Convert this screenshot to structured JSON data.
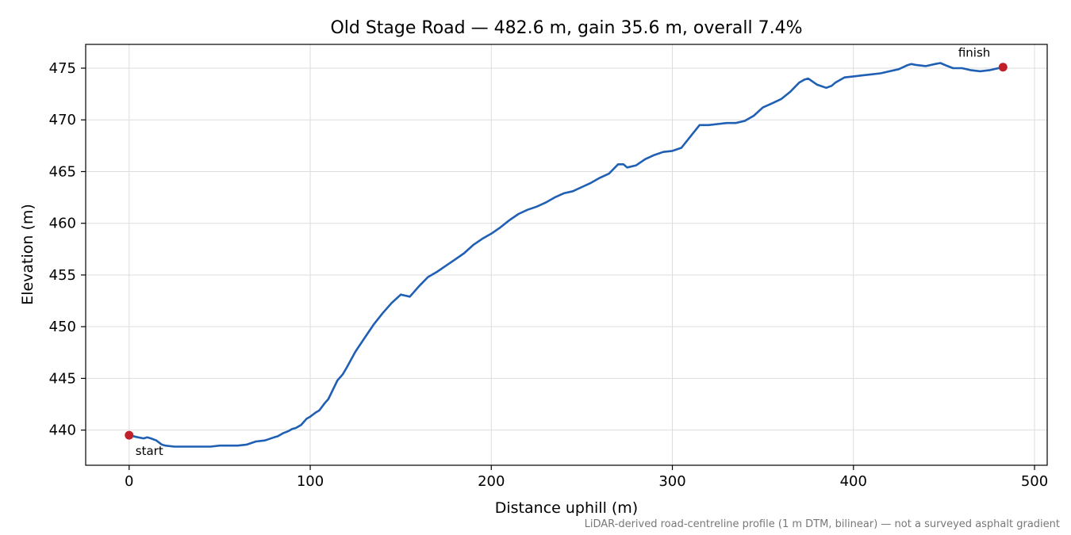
{
  "chart_data": {
    "type": "line",
    "title": "Old Stage Road — 482.6 m, gain 35.6 m, overall 7.4%",
    "xlabel": "Distance uphill (m)",
    "ylabel": "Elevation (m)",
    "xlim": [
      -24,
      507
    ],
    "ylim": [
      436.6,
      477.3
    ],
    "xticks": [
      0,
      100,
      200,
      300,
      400,
      500
    ],
    "yticks": [
      440,
      445,
      450,
      455,
      460,
      465,
      470,
      475
    ],
    "grid": true,
    "colors": {
      "line": "#1f5fb4",
      "marker": "#c0202a",
      "grid": "#dddddd",
      "footnote": "#777777"
    },
    "series": [
      {
        "x": [
          0,
          5,
          8,
          10,
          12,
          15,
          18,
          20,
          25,
          30,
          35,
          40,
          45,
          50,
          55,
          60,
          65,
          70,
          75,
          80,
          82,
          85,
          88,
          90,
          92,
          95,
          98,
          100,
          103,
          105,
          108,
          110,
          115,
          118,
          120,
          125,
          130,
          135,
          140,
          145,
          150,
          155,
          160,
          165,
          170,
          175,
          180,
          185,
          190,
          195,
          200,
          205,
          210,
          215,
          220,
          225,
          230,
          235,
          240,
          245,
          250,
          255,
          260,
          265,
          270,
          273,
          275,
          280,
          285,
          290,
          295,
          300,
          305,
          310,
          315,
          320,
          325,
          330,
          335,
          340,
          345,
          350,
          355,
          360,
          365,
          370,
          373,
          375,
          380,
          385,
          388,
          390,
          393,
          395,
          400,
          405,
          410,
          415,
          420,
          425,
          430,
          432,
          435,
          440,
          445,
          448,
          452,
          455,
          460,
          465,
          470,
          475,
          482.6
        ],
        "values": [
          439.5,
          439.3,
          439.2,
          439.3,
          439.2,
          439.0,
          438.6,
          438.5,
          438.4,
          438.4,
          438.4,
          438.4,
          438.4,
          438.5,
          438.5,
          438.5,
          438.6,
          438.9,
          439.0,
          439.3,
          439.4,
          439.7,
          439.9,
          440.1,
          440.2,
          440.5,
          441.1,
          441.3,
          441.7,
          441.9,
          442.6,
          443.0,
          444.8,
          445.4,
          446.0,
          447.6,
          448.9,
          450.2,
          451.3,
          452.3,
          453.1,
          452.9,
          453.9,
          454.8,
          455.3,
          455.9,
          456.5,
          457.1,
          457.9,
          458.5,
          459.0,
          459.6,
          460.3,
          460.9,
          461.3,
          461.6,
          462.0,
          462.5,
          462.9,
          463.1,
          463.5,
          463.9,
          464.4,
          464.8,
          465.7,
          465.7,
          465.4,
          465.6,
          466.2,
          466.6,
          466.9,
          467.0,
          467.3,
          468.4,
          469.5,
          469.5,
          469.6,
          469.7,
          469.7,
          469.9,
          470.4,
          471.2,
          471.6,
          472.0,
          472.7,
          473.6,
          473.9,
          474.0,
          473.4,
          473.1,
          473.3,
          473.6,
          473.9,
          474.1,
          474.2,
          474.3,
          474.4,
          474.5,
          474.7,
          474.9,
          475.3,
          475.4,
          475.3,
          475.2,
          475.4,
          475.5,
          475.2,
          475.0,
          475.0,
          474.8,
          474.7,
          474.8,
          475.1
        ]
      }
    ],
    "annotations": [
      {
        "label": "start",
        "x": 0,
        "y": 439.5
      },
      {
        "label": "finish",
        "x": 482.6,
        "y": 475.1
      }
    ],
    "footnote": "LiDAR-derived road-centreline profile (1 m DTM, bilinear) — not a surveyed asphalt gradient"
  }
}
